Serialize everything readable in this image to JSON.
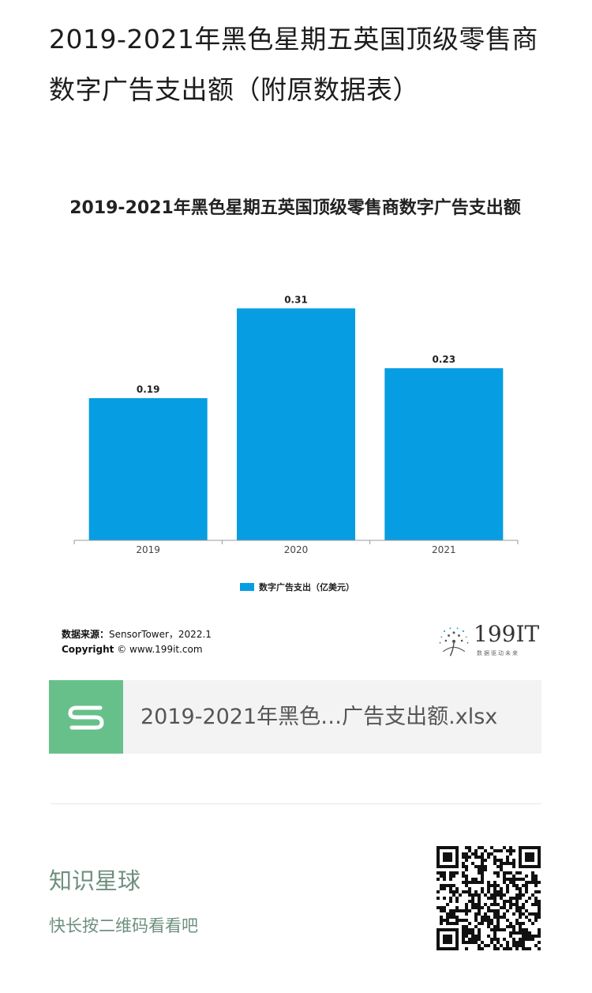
{
  "article": {
    "title_line1": "2019-2021年黑色星期五英国顶级零售商",
    "title_line2": "数字广告支出额（附原数据表）"
  },
  "chart_data": {
    "type": "bar",
    "title": "2019-2021年黑色星期五英国顶级零售商数字广告支出额",
    "categories": [
      "2019",
      "2020",
      "2021"
    ],
    "series": [
      {
        "name": "数字广告支出（亿美元）",
        "values": [
          0.19,
          0.31,
          0.23
        ]
      }
    ],
    "data_labels": [
      "0.19",
      "0.31",
      "0.23"
    ],
    "ylim": [
      0,
      0.36
    ],
    "grid": false,
    "legend": "bottom-center",
    "bar_color": "#069de2"
  },
  "source": {
    "label": "数据来源：",
    "text": "SensorTower，2022.1",
    "copyright_label": "Copyright",
    "copyright_text": "© www.199it.com"
  },
  "logo": {
    "text": "199IT",
    "tagline": "数据驱动未来"
  },
  "attachment": {
    "icon": "spreadsheet-s-icon",
    "icon_color": "#67c08a",
    "file_name": "2019-2021年黑色…广告支出额.xlsx"
  },
  "footer": {
    "title": "知识星球",
    "subtitle": "快长按二维码看看吧",
    "qr_icon": "qr-code-icon"
  }
}
